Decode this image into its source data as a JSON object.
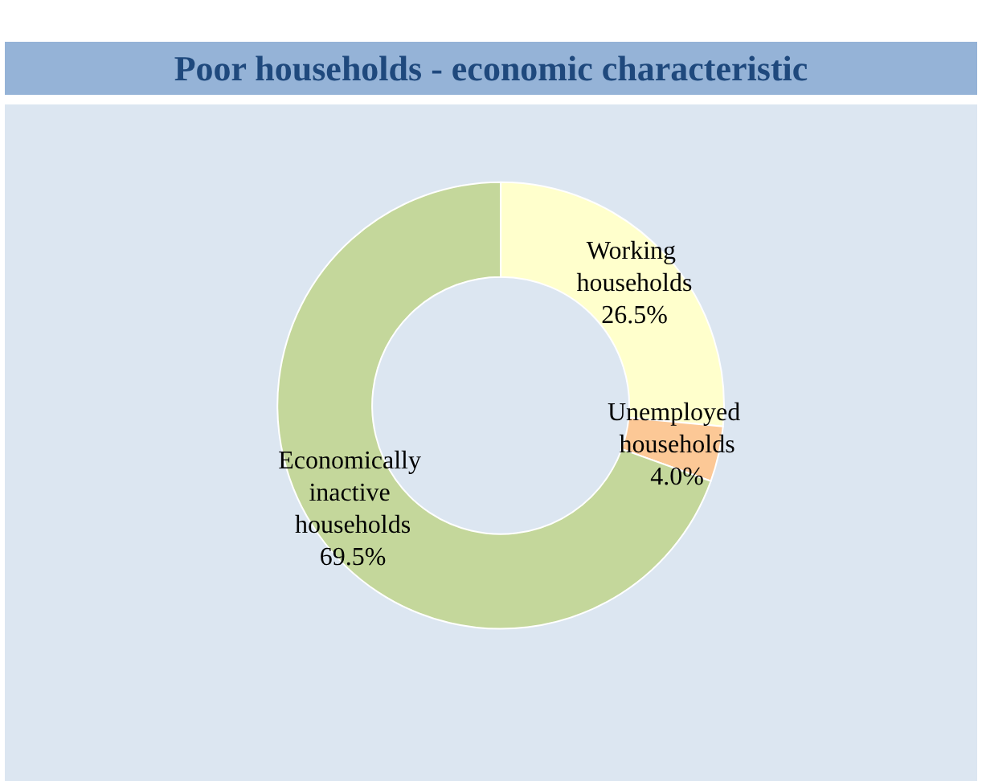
{
  "chart_data": {
    "type": "donut",
    "title": "Poor households - economic characteristic",
    "categories": [
      "Working households",
      "Unemployed households",
      "Economically inactive households"
    ],
    "values": [
      26.5,
      4.0,
      69.5
    ],
    "value_labels": [
      "26.5%",
      "4.0%",
      "69.5%"
    ],
    "colors": [
      "#ffffcc",
      "#fcc896",
      "#c4d79b"
    ],
    "legend": false
  }
}
